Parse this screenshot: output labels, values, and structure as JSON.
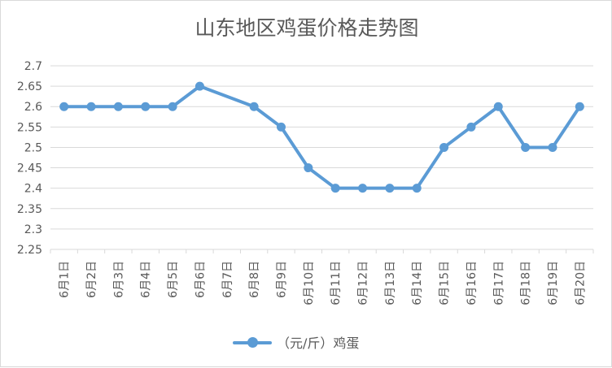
{
  "chart_data": {
    "type": "line",
    "title": "山东地区鸡蛋价格走势图",
    "categories": [
      "6月1日",
      "6月2日",
      "6月3日",
      "6月4日",
      "6月5日",
      "6月6日",
      "6月7日",
      "6月8日",
      "6月9日",
      "6月10日",
      "6月11日",
      "6月12日",
      "6月13日",
      "6月14日",
      "6月15日",
      "6月16日",
      "6月17日",
      "6月18日",
      "6月19日",
      "6月20日"
    ],
    "series": [
      {
        "name": "（元/斤）鸡蛋",
        "values": [
          2.6,
          2.6,
          2.6,
          2.6,
          2.6,
          2.65,
          null,
          2.6,
          2.55,
          2.45,
          2.4,
          2.4,
          2.4,
          2.4,
          2.5,
          2.55,
          2.6,
          2.5,
          2.5,
          2.6
        ],
        "color": "#5b9bd5"
      }
    ],
    "y_ticks": [
      "2.7",
      "2.65",
      "2.6",
      "2.55",
      "2.5",
      "2.45",
      "2.4",
      "2.35",
      "2.3",
      "2.25"
    ],
    "ylim": [
      2.25,
      2.7
    ],
    "grid": true,
    "legend_position": "bottom"
  }
}
